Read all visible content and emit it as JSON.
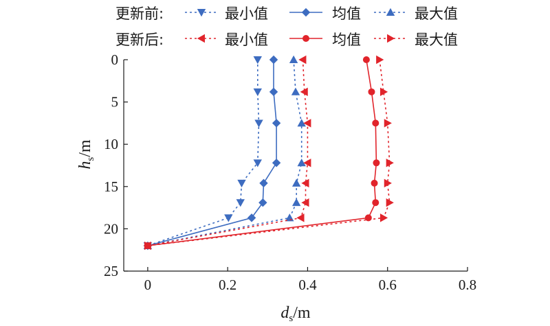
{
  "chart_data": {
    "type": "line",
    "x_axis": {
      "label_var": "d",
      "label_sub": "s",
      "label_unit": "/m",
      "range": [
        -0.06,
        0.8
      ],
      "ticks": [
        0,
        0.2,
        0.4,
        0.6,
        0.8
      ],
      "tick_labels": [
        "0",
        "0.2",
        "0.4",
        "0.6",
        "0.8"
      ]
    },
    "y_axis": {
      "label_var": "h",
      "label_sub": "s",
      "label_unit": "/m",
      "range": [
        0,
        25
      ],
      "inverted": true,
      "ticks": [
        0,
        5,
        10,
        15,
        20,
        25
      ],
      "tick_labels": [
        "0",
        "5",
        "10",
        "15",
        "20",
        "25"
      ]
    },
    "grid": false,
    "legend": {
      "placement": "top",
      "rows": [
        {
          "label": "更新前:",
          "entries": [
            "最小值",
            "均值",
            "最大值"
          ]
        },
        {
          "label": "更新后:",
          "entries": [
            "最小值",
            "均值",
            "最大值"
          ]
        }
      ]
    },
    "colors": {
      "before": "#3d6cc0",
      "after": "#e1242b"
    },
    "series": [
      {
        "group": 0,
        "color": "#3d6cc0",
        "style": "dotted",
        "marker": "tri-down",
        "points": [
          [
            0.275,
            0
          ],
          [
            0.275,
            3.8
          ],
          [
            0.278,
            7.5
          ],
          [
            0.275,
            12.2
          ],
          [
            0.235,
            14.6
          ],
          [
            0.232,
            16.9
          ],
          [
            0.202,
            18.7
          ],
          [
            0.0,
            22
          ]
        ]
      },
      {
        "group": 0,
        "color": "#3d6cc0",
        "style": "solid",
        "marker": "diamond",
        "points": [
          [
            0.315,
            0
          ],
          [
            0.315,
            3.8
          ],
          [
            0.322,
            7.5
          ],
          [
            0.322,
            12.2
          ],
          [
            0.29,
            14.6
          ],
          [
            0.288,
            16.9
          ],
          [
            0.26,
            18.7
          ],
          [
            0.0,
            22
          ]
        ]
      },
      {
        "group": 0,
        "color": "#3d6cc0",
        "style": "dotted",
        "marker": "tri-up",
        "points": [
          [
            0.365,
            0
          ],
          [
            0.37,
            3.8
          ],
          [
            0.385,
            7.5
          ],
          [
            0.385,
            12.2
          ],
          [
            0.372,
            14.6
          ],
          [
            0.372,
            16.9
          ],
          [
            0.355,
            18.7
          ],
          [
            0.0,
            22
          ]
        ]
      },
      {
        "group": 1,
        "color": "#e1242b",
        "style": "dotted",
        "marker": "tri-left",
        "points": [
          [
            0.388,
            0
          ],
          [
            0.392,
            3.8
          ],
          [
            0.4,
            7.5
          ],
          [
            0.4,
            12.2
          ],
          [
            0.395,
            14.6
          ],
          [
            0.395,
            16.9
          ],
          [
            0.383,
            18.7
          ],
          [
            0.0,
            22
          ]
        ]
      },
      {
        "group": 1,
        "color": "#e1242b",
        "style": "solid",
        "marker": "circle",
        "points": [
          [
            0.547,
            0
          ],
          [
            0.56,
            3.8
          ],
          [
            0.57,
            7.5
          ],
          [
            0.572,
            12.2
          ],
          [
            0.567,
            14.6
          ],
          [
            0.57,
            16.9
          ],
          [
            0.552,
            18.7
          ],
          [
            0.0,
            22
          ]
        ]
      },
      {
        "group": 1,
        "color": "#e1242b",
        "style": "dotted",
        "marker": "tri-right",
        "points": [
          [
            0.58,
            0
          ],
          [
            0.59,
            3.8
          ],
          [
            0.6,
            7.5
          ],
          [
            0.605,
            12.2
          ],
          [
            0.6,
            14.6
          ],
          [
            0.605,
            16.9
          ],
          [
            0.59,
            18.7
          ],
          [
            0.0,
            22
          ]
        ]
      }
    ]
  }
}
